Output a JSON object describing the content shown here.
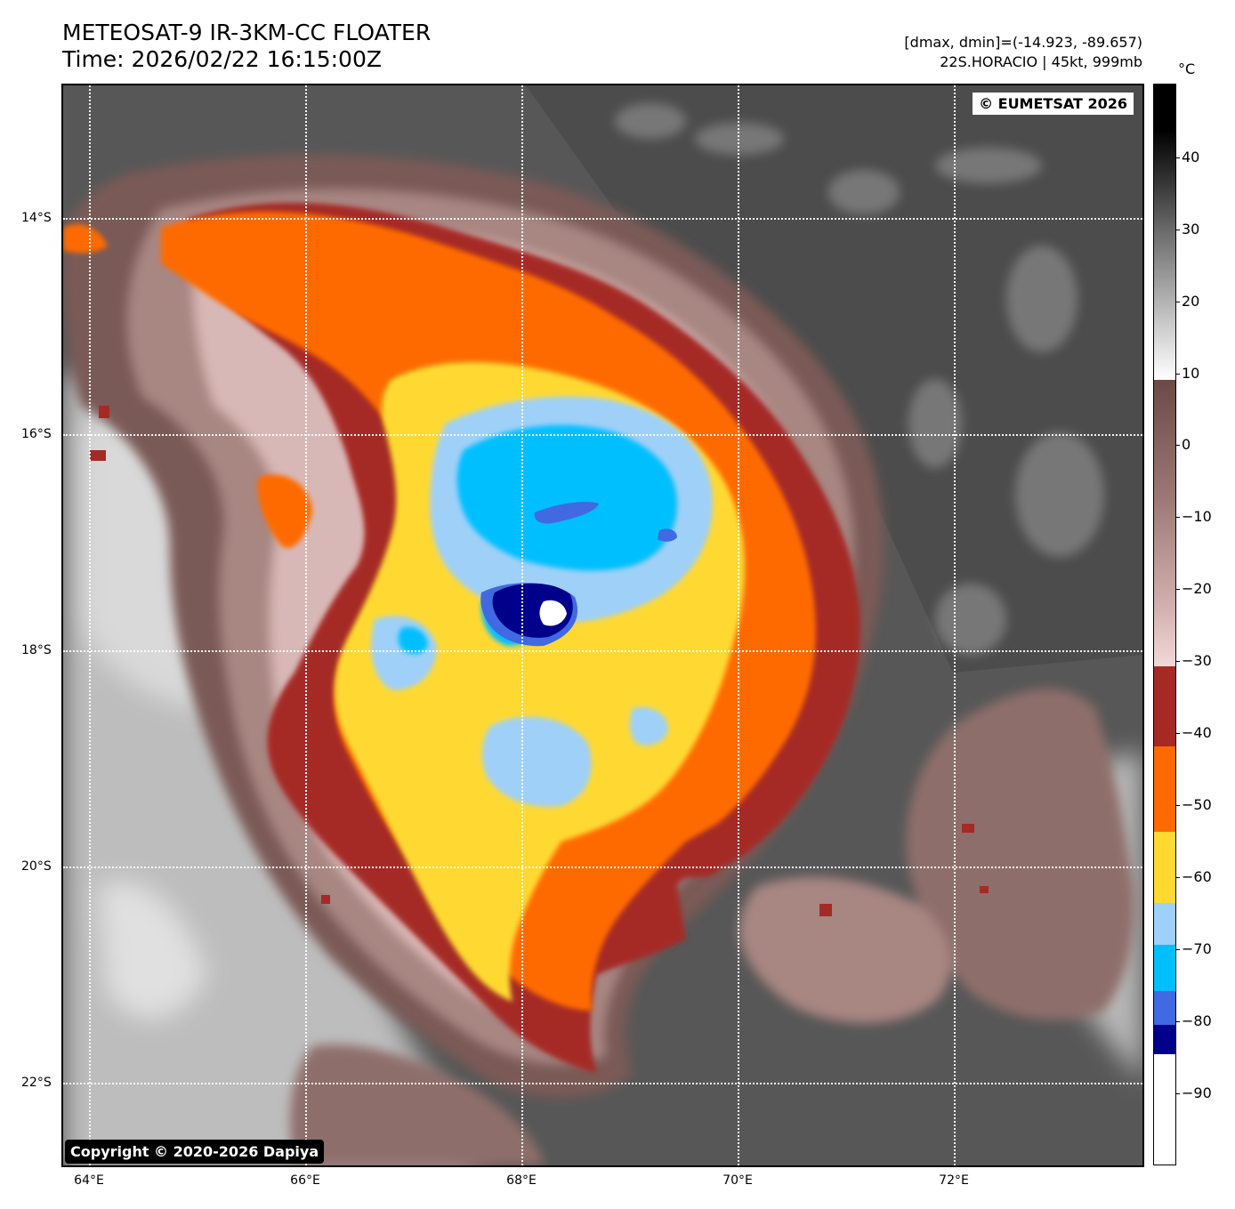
{
  "header": {
    "title_line1": "METEOSAT-9 IR-3KM-CC FLOATER",
    "title_line2": "Time: 2026/02/22 16:15:00Z",
    "info_line1": "[dmax, dmin]=(-14.923, -89.657)",
    "info_line2": "22S.HORACIO | 45kt, 999mb"
  },
  "map": {
    "credit_eumetsat": "© EUMETSAT 2026",
    "credit_dapiya": "Copyright © 2020-2026 Dapiya",
    "lat_labels": [
      "14°S",
      "16°S",
      "18°S",
      "20°S",
      "22°S"
    ],
    "lon_labels": [
      "64°E",
      "66°E",
      "68°E",
      "70°E",
      "72°E"
    ]
  },
  "colorbar": {
    "unit": "°C",
    "ticks": [
      "40",
      "30",
      "20",
      "10",
      "0",
      "−10",
      "−20",
      "−30",
      "−40",
      "−50",
      "−60",
      "−70",
      "−80",
      "−90"
    ],
    "colors": {
      "warm_black": "#000000",
      "gray": "#808080",
      "white": "#ffffff",
      "brown": "#6b4a46",
      "pink": "#f2d8d8",
      "dark_red": "#a52a25",
      "orange": "#ff6a00",
      "yellow": "#ffd930",
      "light_blue": "#9fd0f8",
      "cyan": "#00bfff",
      "royal_blue": "#4169e1",
      "navy": "#00008b"
    }
  }
}
